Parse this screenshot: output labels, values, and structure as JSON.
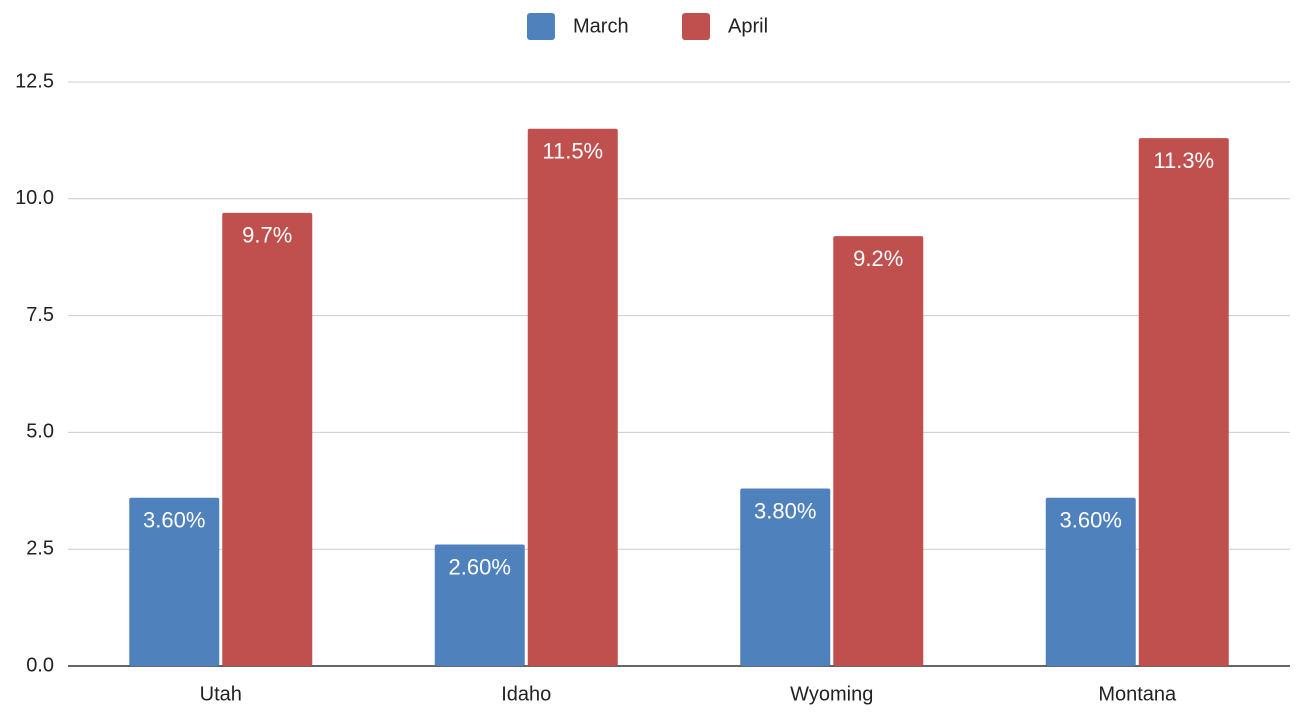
{
  "chart_data": {
    "type": "bar",
    "categories": [
      "Utah",
      "Idaho",
      "Wyoming",
      "Montana"
    ],
    "series": [
      {
        "name": "March",
        "color": "#4f81bd",
        "values": [
          3.6,
          2.6,
          3.8,
          3.6
        ],
        "value_labels": [
          "3.60%",
          "2.60%",
          "3.80%",
          "3.60%"
        ]
      },
      {
        "name": "April",
        "color": "#c0504d",
        "values": [
          9.7,
          11.5,
          9.2,
          11.3
        ],
        "value_labels": [
          "9.7%",
          "11.5%",
          "9.2%",
          "11.3%"
        ]
      }
    ],
    "ylim": [
      0,
      12.5
    ],
    "yticks": [
      {
        "value": 0,
        "label": "0.0"
      },
      2.5,
      {
        "value": 5,
        "label": "5.0"
      },
      7.5,
      {
        "value": 10,
        "label": "10.0"
      },
      12.5
    ],
    "grid": true,
    "legend": "top"
  }
}
